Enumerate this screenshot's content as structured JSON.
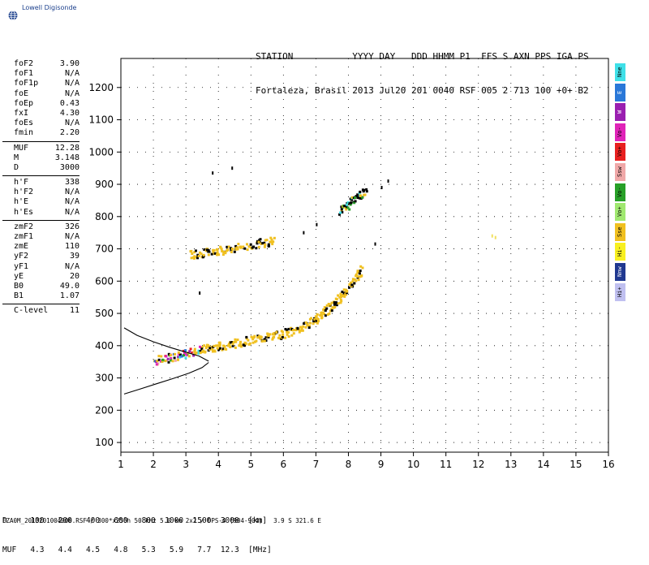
{
  "app": {
    "logo_text": "Lowell Digisonde"
  },
  "header": {
    "labels_line": "STATION           YYYY DAY   DDD HHMM P1  FFS S AXN PPS IGA PS",
    "values_line": "Fortaleza, Brasil 2013 Jul20 201 0040 RSF 005 2 713 100 +0+ B2"
  },
  "params": [
    {
      "label": "foF2",
      "value": "3.90"
    },
    {
      "label": "foF1",
      "value": "N/A"
    },
    {
      "label": "foF1p",
      "value": "N/A"
    },
    {
      "label": "foE",
      "value": "N/A"
    },
    {
      "label": "foEp",
      "value": "0.43"
    },
    {
      "label": "fxI",
      "value": "4.30"
    },
    {
      "label": "foEs",
      "value": "N/A"
    },
    {
      "label": "fmin",
      "value": "2.20"
    },
    {
      "sep": true
    },
    {
      "label": "MUF",
      "value": "12.28"
    },
    {
      "label": "M",
      "value": "3.148"
    },
    {
      "label": "D",
      "value": "3000"
    },
    {
      "sep": true
    },
    {
      "label": "h'F",
      "value": "338"
    },
    {
      "label": "h'F2",
      "value": "N/A"
    },
    {
      "label": "h'E",
      "value": "N/A"
    },
    {
      "label": "h'Es",
      "value": "N/A"
    },
    {
      "sep": true
    },
    {
      "label": "zmF2",
      "value": "326"
    },
    {
      "label": "zmF1",
      "value": "N/A"
    },
    {
      "label": "zmE",
      "value": "110"
    },
    {
      "label": "yF2",
      "value": "39"
    },
    {
      "label": "yF1",
      "value": "N/A"
    },
    {
      "label": "yE",
      "value": "20"
    },
    {
      "label": "B0",
      "value": "49.0"
    },
    {
      "label": "B1",
      "value": "1.07"
    },
    {
      "sep": true
    },
    {
      "label": "C-level",
      "value": "11"
    }
  ],
  "legend": [
    {
      "label": "Nne",
      "color": "#3fe0e8"
    },
    {
      "label": "E",
      "color": "#2a78d8"
    },
    {
      "label": "W",
      "color": "#9a1fb0"
    },
    {
      "label": "Vo-",
      "color": "#e024b8"
    },
    {
      "label": "Vo+",
      "color": "#e82020"
    },
    {
      "label": "Ssw",
      "color": "#f0a8a8"
    },
    {
      "label": "Vo-",
      "color": "#28a028"
    },
    {
      "label": "Vo+",
      "color": "#a0e870"
    },
    {
      "label": "Sse",
      "color": "#f0c020"
    },
    {
      "label": "Hi-",
      "color": "#f8f020"
    },
    {
      "label": "Nnw",
      "color": "#203890"
    },
    {
      "label": "Hi+",
      "color": "#c0c0f0"
    }
  ],
  "footer": {
    "d_row": "D     100   200   400   600   800  1000  1500  3000  [km]",
    "muf_row": "MUF   4.3   4.4   4.5   4.8   5.3   5.9   7.7  12.3  [MHz]",
    "file_line": "FZA0M_2013201004000.RSF / 300*x256h 50 kHz 5.0 km 2x2 / DPS-4 (904-904)   3.9 S 321.6 E"
  },
  "chart_data": {
    "type": "scatter",
    "title": "",
    "xlabel": "",
    "ylabel": "",
    "xlim": [
      1,
      16
    ],
    "ylim": [
      70,
      1290
    ],
    "x_ticks": [
      1,
      2,
      3,
      4,
      5,
      6,
      7,
      8,
      9,
      10,
      11,
      12,
      13,
      14,
      15,
      16
    ],
    "y_ticks": [
      100,
      200,
      300,
      400,
      500,
      600,
      700,
      800,
      900,
      1000,
      1100,
      1200
    ],
    "grid": "dotted",
    "traces": [
      {
        "name": "F2 O-trace lower band",
        "color": "#f0c020",
        "points": [
          [
            2.0,
            355
          ],
          [
            2.3,
            362
          ],
          [
            2.6,
            368
          ],
          [
            2.9,
            375
          ],
          [
            3.2,
            385
          ],
          [
            3.5,
            392
          ],
          [
            3.8,
            398
          ],
          [
            4.1,
            402
          ],
          [
            4.4,
            408
          ],
          [
            4.7,
            414
          ],
          [
            5.0,
            420
          ],
          [
            5.3,
            426
          ],
          [
            5.6,
            432
          ],
          [
            5.9,
            438
          ],
          [
            6.2,
            446
          ],
          [
            6.5,
            458
          ],
          [
            6.8,
            472
          ],
          [
            7.0,
            490
          ],
          [
            7.2,
            505
          ],
          [
            7.4,
            520
          ],
          [
            7.6,
            540
          ],
          [
            7.8,
            560
          ],
          [
            8.0,
            585
          ],
          [
            8.2,
            615
          ],
          [
            8.4,
            640
          ]
        ]
      },
      {
        "name": "multi-hop band",
        "color": "#f0c020",
        "points": [
          [
            3.1,
            685
          ],
          [
            3.4,
            688
          ],
          [
            3.7,
            692
          ],
          [
            4.0,
            698
          ],
          [
            4.3,
            702
          ],
          [
            4.6,
            706
          ],
          [
            5.1,
            718
          ],
          [
            5.4,
            722
          ],
          [
            5.7,
            728
          ]
        ]
      },
      {
        "name": "upper cluster",
        "color": "#28a028",
        "points": [
          [
            7.7,
            820
          ],
          [
            7.9,
            835
          ],
          [
            8.1,
            850
          ],
          [
            8.3,
            870
          ],
          [
            8.5,
            880
          ]
        ]
      },
      {
        "name": "model curve upper",
        "color": "#000000",
        "points": [
          [
            1.1,
            455
          ],
          [
            1.5,
            432
          ],
          [
            2.0,
            412
          ],
          [
            2.5,
            395
          ],
          [
            3.0,
            380
          ],
          [
            3.4,
            368
          ],
          [
            3.7,
            352
          ]
        ]
      },
      {
        "name": "model curve lower",
        "color": "#000000",
        "points": [
          [
            1.1,
            250
          ],
          [
            1.6,
            266
          ],
          [
            2.1,
            282
          ],
          [
            2.6,
            298
          ],
          [
            3.1,
            315
          ],
          [
            3.5,
            332
          ],
          [
            3.7,
            348
          ]
        ]
      }
    ],
    "isolated_points": [
      [
        3.8,
        940
      ],
      [
        4.4,
        955
      ],
      [
        3.4,
        568
      ],
      [
        6.6,
        755
      ],
      [
        7.0,
        780
      ],
      [
        8.8,
        720
      ],
      [
        12.4,
        745
      ],
      [
        12.5,
        740
      ],
      [
        9.2,
        915
      ],
      [
        9.0,
        895
      ]
    ]
  }
}
